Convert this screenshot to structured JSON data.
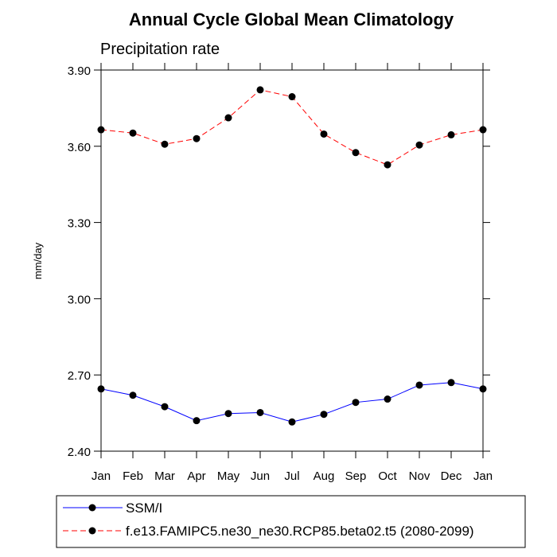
{
  "chart_data": {
    "type": "line",
    "title": "Annual Cycle Global Mean Climatology",
    "subtitle": "Precipitation rate",
    "xlabel": "",
    "ylabel": "mm/day",
    "categories": [
      "Jan",
      "Feb",
      "Mar",
      "Apr",
      "May",
      "Jun",
      "Jul",
      "Aug",
      "Sep",
      "Oct",
      "Nov",
      "Dec",
      "Jan"
    ],
    "ylim": [
      2.4,
      3.9
    ],
    "yticks": [
      "2.40",
      "2.70",
      "3.00",
      "3.30",
      "3.60",
      "3.90"
    ],
    "grid": false,
    "legend_position": "bottom",
    "series": [
      {
        "name": "SSM/I",
        "color": "#0000ff",
        "line_style": "solid",
        "marker": "dot",
        "values": [
          2.645,
          2.62,
          2.575,
          2.52,
          2.548,
          2.552,
          2.515,
          2.545,
          2.592,
          2.605,
          2.66,
          2.67,
          2.645
        ]
      },
      {
        "name": "f.e13.FAMIPC5.ne30_ne30.RCP85.beta02.t5 (2080-2099)",
        "color": "#ff0000",
        "line_style": "dashed",
        "marker": "dot",
        "values": [
          3.665,
          3.652,
          3.608,
          3.63,
          3.712,
          3.822,
          3.795,
          3.648,
          3.575,
          3.527,
          3.605,
          3.645,
          3.665
        ]
      }
    ]
  }
}
